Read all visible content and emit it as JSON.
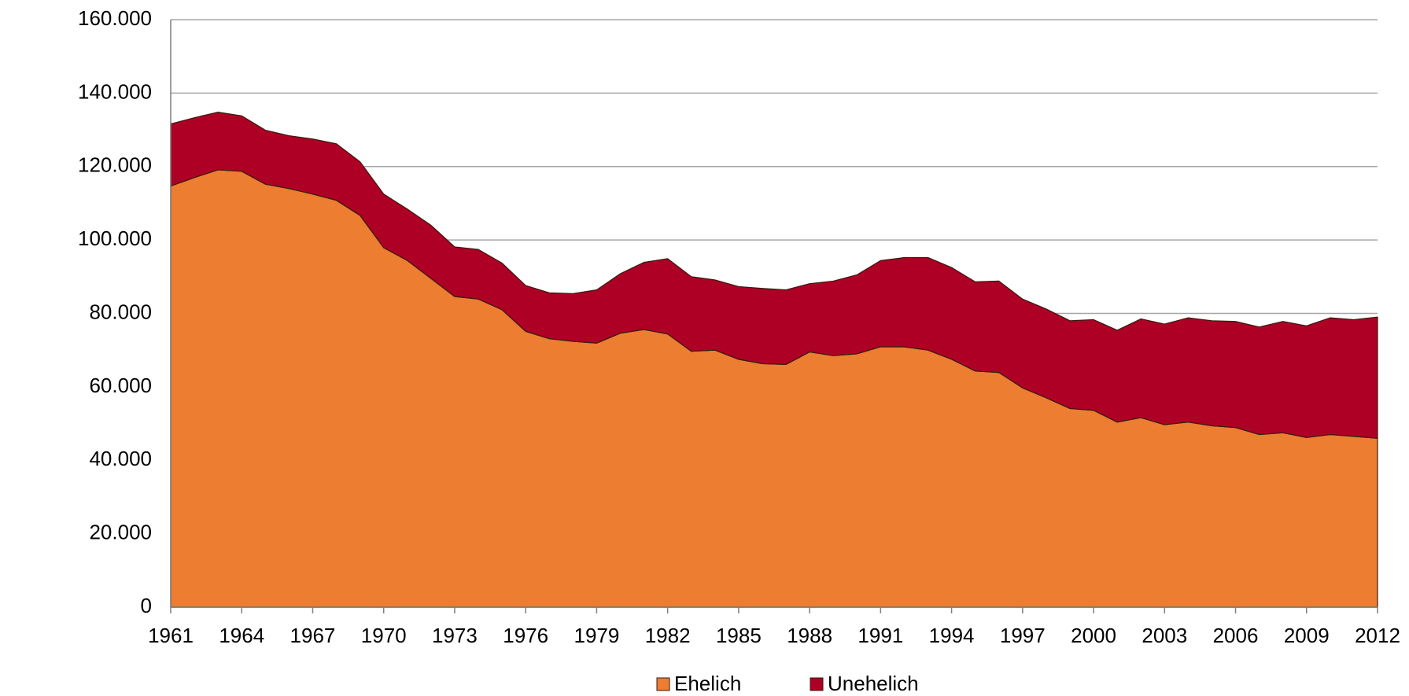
{
  "chart_data": {
    "type": "stacked-area",
    "x": [
      1961,
      1962,
      1963,
      1964,
      1965,
      1966,
      1967,
      1968,
      1969,
      1970,
      1971,
      1972,
      1973,
      1974,
      1975,
      1976,
      1977,
      1978,
      1979,
      1980,
      1981,
      1982,
      1983,
      1984,
      1985,
      1986,
      1987,
      1988,
      1989,
      1990,
      1991,
      1992,
      1993,
      1994,
      1995,
      1996,
      1997,
      1998,
      1999,
      2000,
      2001,
      2002,
      2003,
      2004,
      2005,
      2006,
      2007,
      2008,
      2009,
      2010,
      2011,
      2012
    ],
    "series": [
      {
        "name": "Ehelich",
        "color": "#ed7d31",
        "values": [
          114700,
          117000,
          119100,
          118700,
          115200,
          114000,
          112500,
          110800,
          106700,
          97900,
          94400,
          89500,
          84600,
          83900,
          81000,
          75100,
          73100,
          72400,
          71900,
          74600,
          75600,
          74400,
          69700,
          70000,
          67500,
          66300,
          66100,
          69500,
          68500,
          69000,
          70900,
          70900,
          70000,
          67500,
          64300,
          63900,
          59700,
          57000,
          54100,
          53600,
          50400,
          51600,
          49700,
          50400,
          49400,
          48900,
          47000,
          47500,
          46200,
          47000,
          46500,
          46000
        ]
      },
      {
        "name": "Unehelich",
        "color": "#ad0024",
        "values": [
          16900,
          16300,
          15700,
          15100,
          14700,
          14400,
          15000,
          15400,
          14600,
          14600,
          14000,
          14500,
          13500,
          13500,
          12700,
          12500,
          12500,
          13000,
          14500,
          16200,
          18300,
          20500,
          20300,
          19100,
          19800,
          20500,
          20300,
          18600,
          20300,
          21500,
          23500,
          24300,
          25200,
          25000,
          24300,
          24900,
          24200,
          24200,
          23900,
          24700,
          25000,
          26900,
          27400,
          28400,
          28600,
          28900,
          29300,
          30300,
          30400,
          31800,
          31800,
          33000
        ]
      }
    ],
    "xlim": [
      1961,
      2012
    ],
    "xticks": [
      1961,
      1964,
      1967,
      1970,
      1973,
      1976,
      1979,
      1982,
      1985,
      1988,
      1991,
      1994,
      1997,
      2000,
      2003,
      2006,
      2009,
      2012
    ],
    "ylim": [
      0,
      160000
    ],
    "yticks": [
      0,
      {
        "value": 20000,
        "label": "20.000"
      },
      {
        "value": 40000,
        "label": "40.000"
      },
      {
        "value": 60000,
        "label": "60.000"
      },
      {
        "value": 80000,
        "label": "80.000"
      },
      {
        "value": 100000,
        "label": "100.000"
      },
      {
        "value": 120000,
        "label": "120.000"
      },
      {
        "value": 140000,
        "label": "140.000"
      },
      {
        "value": 160000,
        "label": "160.000"
      }
    ],
    "grid": true,
    "legend": "bottom"
  }
}
